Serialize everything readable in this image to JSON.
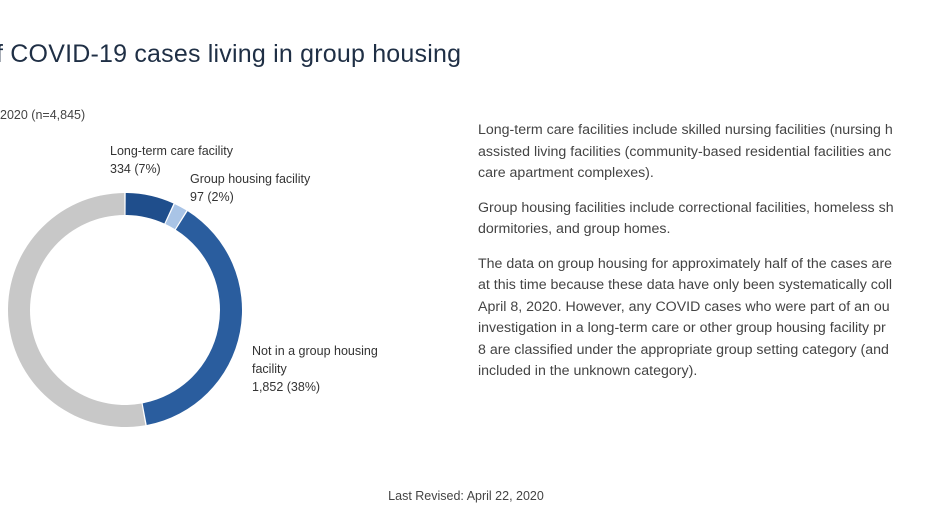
{
  "header": {
    "title": "f COVID-19 cases living in group housing",
    "subtitle": "2020 (n=4,845)"
  },
  "chart_data": {
    "type": "pie",
    "donut": true,
    "slices": [
      {
        "name": "Long-term care facility",
        "value": 334,
        "percent": "7%",
        "value_label": "334 (7%)",
        "color": "#1f4e8c"
      },
      {
        "name": "Group housing facility",
        "value": 97,
        "percent": "2%",
        "value_label": "97 (2%)",
        "color": "#a9c4e6"
      },
      {
        "name": "Not in a group housing facility",
        "value": 1852,
        "percent": "38%",
        "value_label": "1,852 (38%)",
        "color": "#2a5d9e"
      },
      {
        "name": "",
        "value": 2562,
        "color": "#c8c8c8"
      }
    ]
  },
  "labels": {
    "ltc": {
      "line1": "Long-term care facility",
      "line2": "334 (7%)"
    },
    "gh": {
      "line1": "Group housing facility",
      "line2": "97 (2%)"
    },
    "not": {
      "line1": "Not in a group housing",
      "line2": "facility",
      "line3": "1,852 (38%)"
    }
  },
  "description": {
    "p1": [
      "Long-term care facilities include skilled nursing facilities (nursing h",
      "assisted living facilities (community-based residential facilities anc",
      "care apartment complexes)."
    ],
    "p2": [
      "Group housing facilities include correctional facilities, homeless sh",
      "dormitories, and group homes."
    ],
    "p3": [
      "The data on group housing for approximately half of the cases are",
      "at this time because these data have only been systematically coll",
      "April 8, 2020. However, any COVID cases who were part of an ou",
      "investigation in a long-term care or other group housing facility pr",
      "8 are classified under the appropriate group setting category (and",
      "included in the unknown category)."
    ]
  },
  "footer": {
    "last_revised": "Last Revised: April 22, 2020"
  }
}
